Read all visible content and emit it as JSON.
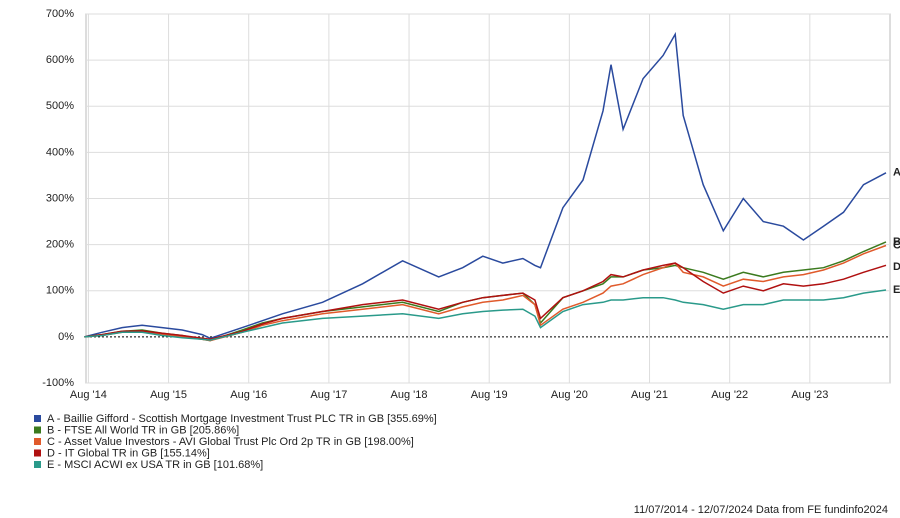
{
  "chart_data": {
    "type": "line",
    "x": [
      2014.53,
      2014.75,
      2015.0,
      2015.25,
      2015.5,
      2015.75,
      2016.0,
      2016.1,
      2016.5,
      2016.75,
      2017.0,
      2017.5,
      2018.0,
      2018.5,
      2018.95,
      2019.25,
      2019.5,
      2019.75,
      2020.0,
      2020.15,
      2020.22,
      2020.5,
      2020.75,
      2021.0,
      2021.1,
      2021.25,
      2021.5,
      2021.75,
      2021.9,
      2022.0,
      2022.25,
      2022.5,
      2022.75,
      2023.0,
      2023.25,
      2023.5,
      2023.75,
      2024.0,
      2024.25,
      2024.53
    ],
    "series": [
      {
        "name": "A - Baillie Gifford - Scottish Mortgage Investment Trust PLC TR in GB [355.69%]",
        "end_label": "A",
        "color": "#2a4a9e",
        "values": [
          0,
          10,
          20,
          25,
          20,
          15,
          5,
          -3,
          20,
          35,
          50,
          75,
          115,
          165,
          130,
          150,
          175,
          160,
          170,
          155,
          150,
          280,
          340,
          490,
          590,
          450,
          560,
          610,
          656,
          480,
          330,
          230,
          300,
          250,
          240,
          210,
          240,
          270,
          330,
          355.69
        ]
      },
      {
        "name": "B - FTSE All World TR in GB [205.86%]",
        "end_label": "B",
        "color": "#3b7a1e",
        "values": [
          0,
          5,
          12,
          15,
          8,
          3,
          -5,
          -8,
          15,
          30,
          40,
          55,
          65,
          75,
          55,
          75,
          85,
          90,
          95,
          70,
          30,
          85,
          100,
          115,
          130,
          130,
          145,
          150,
          155,
          150,
          140,
          125,
          140,
          130,
          140,
          145,
          150,
          165,
          185,
          205.86
        ]
      },
      {
        "name": "C - Asset Value Investors - AVI Global Trust Plc Ord 2p TR in GB [198.00%]",
        "end_label": "C",
        "color": "#e05a2b",
        "values": [
          0,
          3,
          10,
          12,
          5,
          0,
          -5,
          -8,
          10,
          25,
          35,
          50,
          60,
          70,
          50,
          65,
          75,
          80,
          90,
          70,
          25,
          60,
          75,
          95,
          110,
          115,
          135,
          150,
          160,
          140,
          130,
          110,
          125,
          120,
          130,
          135,
          145,
          160,
          180,
          198
        ]
      },
      {
        "name": "D - IT Global TR in GB [155.14%]",
        "end_label": "D",
        "color": "#b01010",
        "values": [
          0,
          5,
          12,
          13,
          8,
          3,
          -3,
          -5,
          12,
          28,
          40,
          55,
          70,
          80,
          60,
          75,
          85,
          90,
          95,
          80,
          40,
          85,
          100,
          120,
          135,
          130,
          145,
          155,
          160,
          150,
          120,
          95,
          110,
          100,
          115,
          110,
          115,
          125,
          140,
          155.14
        ]
      },
      {
        "name": "E - MSCI ACWI ex USA TR in GB [101.68%]",
        "end_label": "E",
        "color": "#2a9a8a",
        "values": [
          0,
          3,
          10,
          10,
          3,
          -2,
          -5,
          -7,
          10,
          20,
          30,
          40,
          45,
          50,
          40,
          50,
          55,
          58,
          60,
          45,
          20,
          55,
          70,
          75,
          80,
          80,
          85,
          85,
          80,
          75,
          70,
          60,
          70,
          70,
          80,
          80,
          80,
          85,
          95,
          101.68
        ]
      }
    ],
    "xlim": [
      2014.55,
      2024.58
    ],
    "xticks": [
      {
        "value": 2014.58,
        "label": "Aug '14"
      },
      {
        "value": 2015.58,
        "label": "Aug '15"
      },
      {
        "value": 2016.58,
        "label": "Aug '16"
      },
      {
        "value": 2017.58,
        "label": "Aug '17"
      },
      {
        "value": 2018.58,
        "label": "Aug '18"
      },
      {
        "value": 2019.58,
        "label": "Aug '19"
      },
      {
        "value": 2020.58,
        "label": "Aug '20"
      },
      {
        "value": 2021.58,
        "label": "Aug '21"
      },
      {
        "value": 2022.58,
        "label": "Aug '22"
      },
      {
        "value": 2023.58,
        "label": "Aug '23"
      }
    ],
    "ylim": [
      -100,
      700
    ],
    "yticks": [
      {
        "value": -100,
        "label": "-100%"
      },
      {
        "value": 0,
        "label": "0%"
      },
      {
        "value": 100,
        "label": "100%"
      },
      {
        "value": 200,
        "label": "200%"
      },
      {
        "value": 300,
        "label": "300%"
      },
      {
        "value": 400,
        "label": "400%"
      },
      {
        "value": 500,
        "label": "500%"
      },
      {
        "value": 600,
        "label": "600%"
      },
      {
        "value": 700,
        "label": "700%"
      }
    ],
    "grid": true,
    "footer": "11/07/2014 - 12/07/2024 Data from FE fundinfo2024"
  }
}
